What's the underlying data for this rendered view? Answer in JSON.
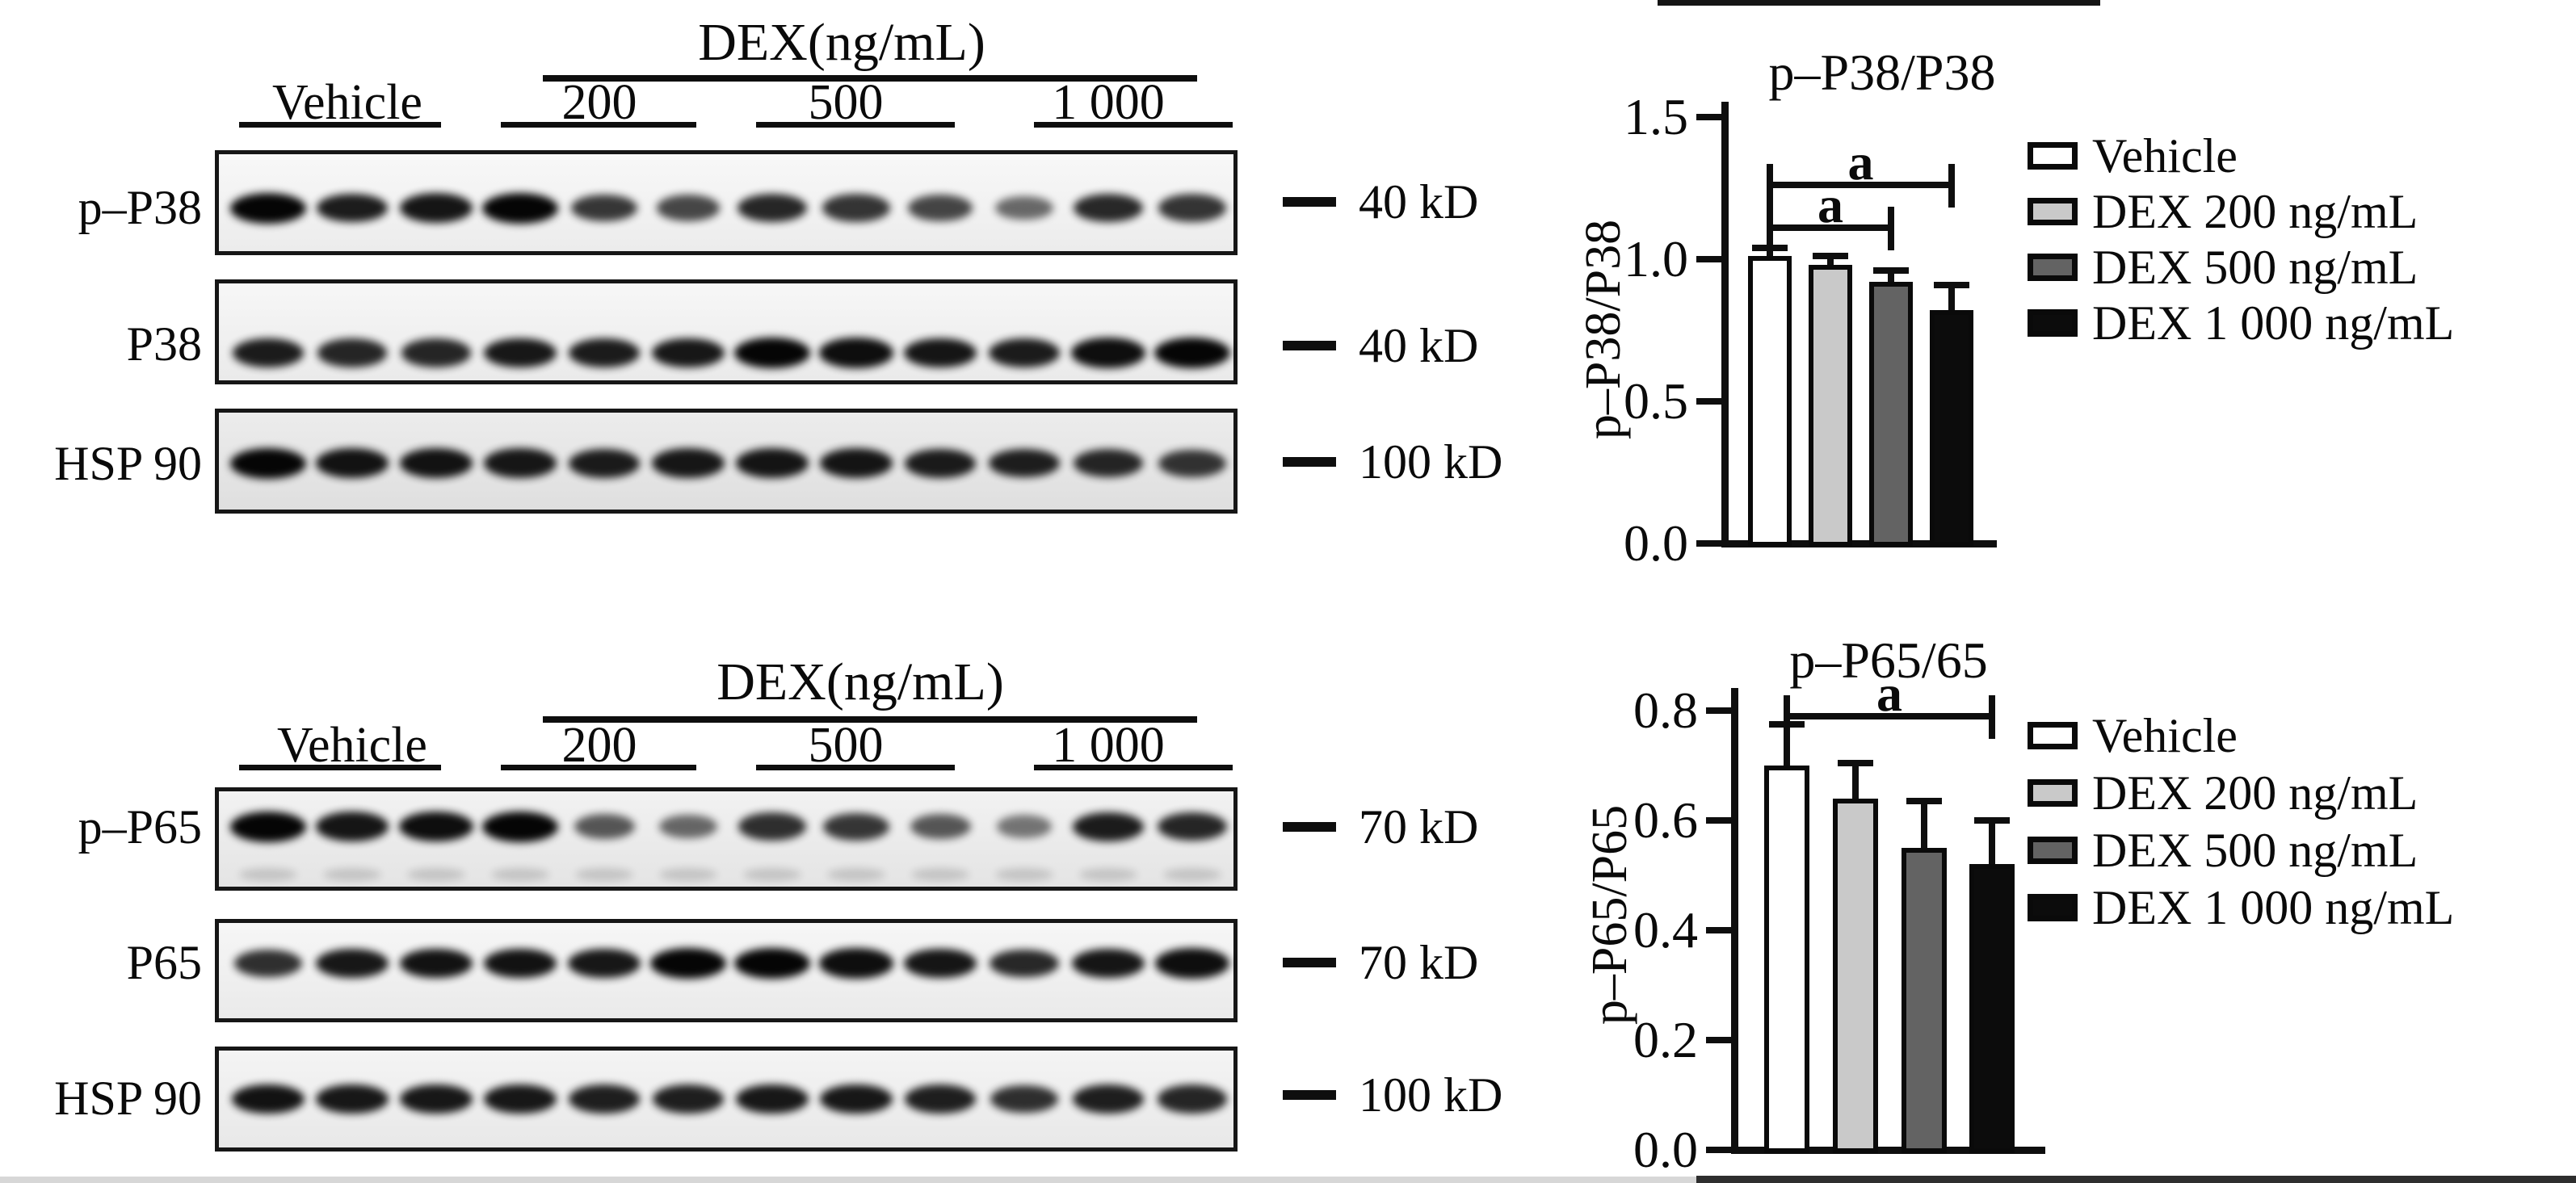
{
  "figure": {
    "background": "#ffffff",
    "ink": "#0a0a0a",
    "bar_colors": [
      "#ffffff",
      "#c9c9c9",
      "#636363",
      "#0c0c0c"
    ]
  },
  "blot_panels": [
    {
      "id": "p38",
      "treatment_header": "DEX(ng/mL)",
      "group_labels": [
        "Vehicle",
        "200",
        "500",
        "1 000"
      ],
      "rows": [
        {
          "label": "p–P38",
          "marker": "40 kD",
          "lanes": 12,
          "intensities": [
            1.0,
            0.85,
            0.9,
            1.0,
            0.7,
            0.6,
            0.8,
            0.72,
            0.62,
            0.4,
            0.78,
            0.72
          ]
        },
        {
          "label": "P38",
          "marker": "40 kD",
          "lanes": 12,
          "intensities": [
            0.85,
            0.8,
            0.8,
            0.88,
            0.85,
            0.88,
            1.0,
            0.95,
            0.9,
            0.85,
            0.95,
            1.0
          ]
        },
        {
          "label": "HSP 90",
          "marker": "100 kD",
          "lanes": 12,
          "intensities": [
            1.0,
            0.92,
            0.92,
            0.88,
            0.85,
            0.88,
            0.9,
            0.9,
            0.86,
            0.84,
            0.8,
            0.72
          ]
        }
      ]
    },
    {
      "id": "p65",
      "treatment_header": "DEX(ng/mL)",
      "group_labels": [
        "Vehicle",
        "200",
        "500",
        "1 000"
      ],
      "rows": [
        {
          "label": "p–P65",
          "marker": "70 kD",
          "lanes": 12,
          "faint_secondary_band": true,
          "intensities": [
            1.0,
            0.9,
            0.95,
            1.0,
            0.5,
            0.4,
            0.75,
            0.7,
            0.5,
            0.32,
            0.85,
            0.8
          ]
        },
        {
          "label": "P65",
          "marker": "70 kD",
          "lanes": 12,
          "intensities": [
            0.75,
            0.88,
            0.92,
            0.92,
            0.88,
            1.0,
            1.0,
            0.95,
            0.9,
            0.78,
            0.9,
            0.95
          ]
        },
        {
          "label": "HSP 90",
          "marker": "100 kD",
          "lanes": 12,
          "intensities": [
            0.92,
            0.88,
            0.88,
            0.88,
            0.84,
            0.84,
            0.88,
            0.88,
            0.84,
            0.74,
            0.84,
            0.8
          ]
        }
      ]
    }
  ],
  "chart_data": [
    {
      "type": "bar",
      "title": "p–P38/P38",
      "ylabel": "p–P38/P38",
      "xlabel": "",
      "categories": [
        "Vehicle",
        "DEX 200 ng/mL",
        "DEX 500 ng/mL",
        "DEX 1 000 ng/mL"
      ],
      "values": [
        1.01,
        0.98,
        0.92,
        0.82
      ],
      "errors_plus": [
        0.03,
        0.03,
        0.04,
        0.09
      ],
      "ylim": [
        0,
        1.5
      ],
      "yticks": [
        "0.0",
        "0.5",
        "1.0",
        "1.5"
      ],
      "grid": false,
      "legend_position": "right",
      "bar_colors": [
        "#ffffff",
        "#c9c9c9",
        "#636363",
        "#0c0c0c"
      ],
      "significance": [
        {
          "from": 0,
          "to": 2,
          "y": 1.11,
          "label": "a"
        },
        {
          "from": 0,
          "to": 3,
          "y": 1.26,
          "label": "a"
        }
      ]
    },
    {
      "type": "bar",
      "title": "p–P65/65",
      "ylabel": "p–P65/P65",
      "xlabel": "",
      "categories": [
        "Vehicle",
        "DEX 200 ng/mL",
        "DEX 500 ng/mL",
        "DEX 1 000 ng/mL"
      ],
      "values": [
        0.7,
        0.64,
        0.55,
        0.52
      ],
      "errors_plus": [
        0.075,
        0.065,
        0.085,
        0.08
      ],
      "ylim": [
        0,
        0.8
      ],
      "yticks": [
        "0.0",
        "0.2",
        "0.4",
        "0.6",
        "0.8"
      ],
      "grid": false,
      "legend_position": "right",
      "bar_colors": [
        "#ffffff",
        "#c9c9c9",
        "#636363",
        "#0c0c0c"
      ],
      "significance": [
        {
          "from": 0,
          "to": 3,
          "y": 0.79,
          "label": "a"
        }
      ]
    }
  ]
}
